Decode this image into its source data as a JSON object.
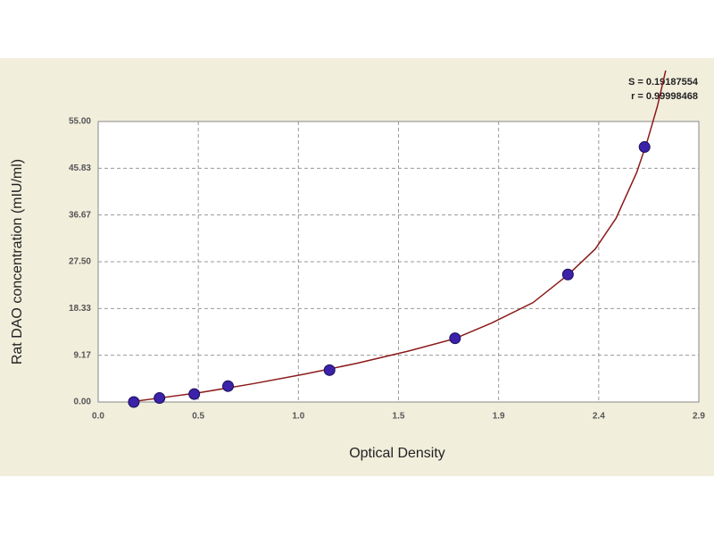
{
  "chart_data": {
    "type": "scatter",
    "x_label": "Optical Density",
    "y_label": "Rat DAO concentration (mIU/ml)",
    "annotations": [
      "S = 0.19187554",
      "r = 0.99998468"
    ],
    "xlim": [
      0,
      2.9
    ],
    "ylim": [
      0,
      55
    ],
    "xticks": [
      {
        "value": 0,
        "label": "0.0"
      },
      {
        "value": 0.4833,
        "label": "0.5"
      },
      {
        "value": 0.9667,
        "label": "1.0"
      },
      {
        "value": 1.45,
        "label": "1.5"
      },
      {
        "value": 1.9333,
        "label": "1.9"
      },
      {
        "value": 2.4167,
        "label": "2.4"
      },
      {
        "value": 2.9,
        "label": "2.9"
      }
    ],
    "yticks": [
      {
        "value": 0,
        "label": "0.00"
      },
      {
        "value": 9.1667,
        "label": "9.17"
      },
      {
        "value": 18.3333,
        "label": "18.33"
      },
      {
        "value": 27.5,
        "label": "27.50"
      },
      {
        "value": 36.6667,
        "label": "36.67"
      },
      {
        "value": 45.8333,
        "label": "45.83"
      },
      {
        "value": 55,
        "label": "55.00"
      }
    ],
    "grid": true,
    "series": [
      {
        "color": "#3b22a8",
        "x": [
          0.172,
          0.296,
          0.464,
          0.627,
          1.117,
          1.723,
          2.268,
          2.638
        ],
        "values": [
          0,
          0.78,
          1.56,
          3.12,
          6.25,
          12.5,
          25,
          50
        ]
      },
      {
        "type": "line",
        "color": "#8b1a1a",
        "x": [
          0.15,
          0.3,
          0.5,
          0.75,
          1.0,
          1.25,
          1.5,
          1.72,
          1.9,
          2.1,
          2.27,
          2.4,
          2.5,
          2.6,
          2.65,
          2.7,
          2.74
        ],
        "values": [
          0,
          0.8,
          1.9,
          3.6,
          5.5,
          7.6,
          10,
          12.4,
          15.5,
          19.5,
          25,
          30,
          36,
          45,
          51,
          58,
          65
        ]
      }
    ]
  }
}
